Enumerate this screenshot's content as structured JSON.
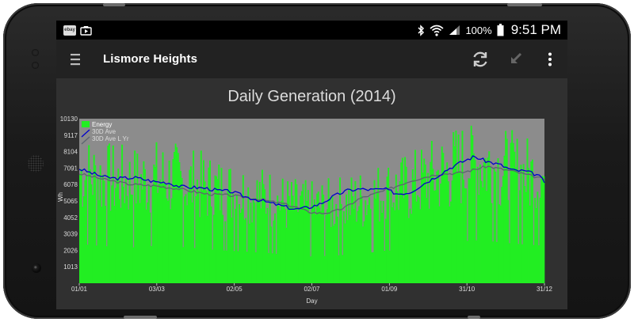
{
  "statusbar": {
    "notifications": [
      "ebay-icon",
      "photo-app-icon"
    ],
    "icons": [
      "bluetooth-icon",
      "wifi-icon",
      "cell-signal-icon",
      "battery-icon"
    ],
    "battery": "100%",
    "time": "9:51 PM",
    "ebay_label": "ebay"
  },
  "appbar": {
    "title": "Lismore Heights",
    "actions": [
      "refresh-icon",
      "collapse-icon",
      "overflow-menu-icon"
    ]
  },
  "colors": {
    "energy": "#22ee22",
    "ave30": "#0000cc",
    "ave30_last_year": "#5c6470",
    "plot_bg": "#8c8c8c",
    "axis_text": "#dddddd"
  },
  "chart_data": {
    "type": "bar",
    "title": "Daily Generation (2014)",
    "xlabel": "Day",
    "ylabel": "Wh",
    "x_tick_labels": [
      "01/01",
      "03/03",
      "02/05",
      "02/07",
      "01/09",
      "31/10",
      "31/12"
    ],
    "y_tick_labels": [
      "1013",
      "2026",
      "3039",
      "4052",
      "5065",
      "6078",
      "7091",
      "8104",
      "9117",
      "10130"
    ],
    "ylim": [
      0,
      10130
    ],
    "xlim": [
      1,
      365
    ],
    "days": 365,
    "legend": [
      "Energy",
      "30D Ave",
      "30D Ave L Yr"
    ],
    "legend_position": "top-left",
    "grid": false,
    "series": [
      {
        "name": "Energy",
        "type": "bar",
        "note_values": "daily values, sampled every ~15 days (interpolated visually)",
        "x": [
          1,
          15,
          30,
          45,
          60,
          75,
          90,
          105,
          120,
          135,
          150,
          165,
          180,
          195,
          210,
          225,
          240,
          255,
          270,
          285,
          300,
          315,
          330,
          345,
          365
        ],
        "values": [
          6900,
          6600,
          6400,
          6300,
          6600,
          6500,
          6200,
          5900,
          5700,
          5500,
          5300,
          4900,
          4700,
          4800,
          5000,
          5300,
          5700,
          5900,
          6400,
          6900,
          7400,
          7600,
          7200,
          6900,
          6600
        ]
      },
      {
        "name": "30D Ave",
        "type": "line",
        "x": [
          1,
          10,
          20,
          30,
          45,
          60,
          70,
          80,
          90,
          100,
          110,
          120,
          130,
          140,
          150,
          160,
          170,
          180,
          190,
          200,
          210,
          220,
          230,
          240,
          250,
          260,
          270,
          280,
          290,
          300,
          310,
          320,
          330,
          340,
          350,
          360,
          365
        ],
        "values": [
          7050,
          6800,
          6550,
          6450,
          6500,
          6250,
          6200,
          5950,
          5900,
          5850,
          5700,
          5650,
          5350,
          5150,
          4950,
          4750,
          4550,
          4650,
          4900,
          5350,
          5700,
          5800,
          5750,
          5800,
          5500,
          5600,
          6100,
          6550,
          7050,
          7450,
          7800,
          7500,
          7300,
          6950,
          6900,
          6650,
          6250
        ]
      },
      {
        "name": "30D Ave L Yr",
        "type": "line",
        "x": [
          1,
          20,
          40,
          60,
          80,
          100,
          120,
          140,
          160,
          170,
          180,
          190,
          200,
          210,
          220,
          240,
          260,
          280,
          300,
          320,
          340,
          365
        ],
        "values": [
          6750,
          6400,
          6100,
          6000,
          5800,
          5500,
          5400,
          5200,
          4900,
          4700,
          4400,
          4300,
          4400,
          4700,
          5200,
          5700,
          6300,
          6700,
          6800,
          7200,
          6900,
          6400
        ]
      }
    ]
  }
}
